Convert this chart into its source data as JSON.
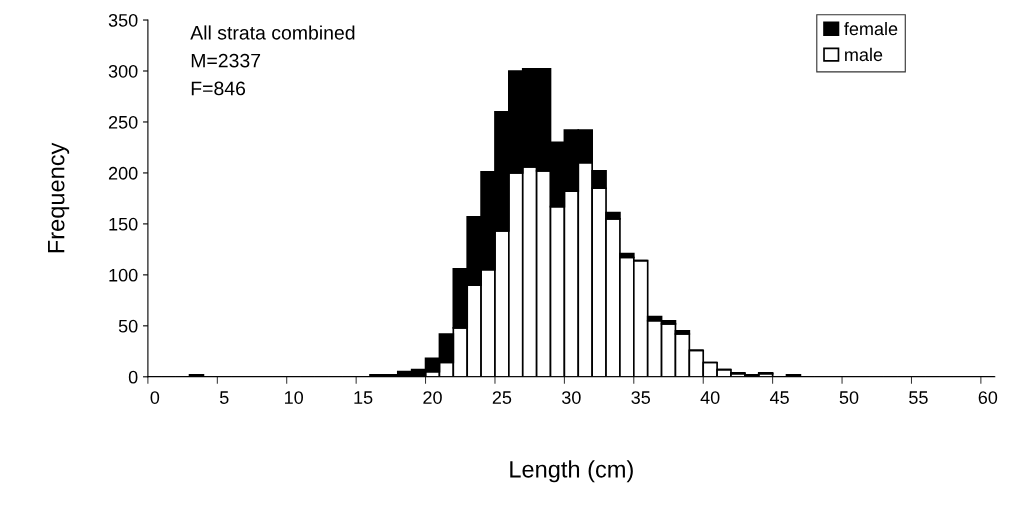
{
  "chart_data": {
    "type": "bar",
    "xlabel": "Length (cm)",
    "ylabel": "Frequency",
    "annotations": [
      "All strata combined",
      "M=2337",
      "F=846"
    ],
    "categories": [
      "0",
      null,
      null,
      null,
      null,
      "5",
      null,
      null,
      null,
      null,
      "10",
      null,
      null,
      null,
      null,
      "15",
      null,
      null,
      null,
      null,
      "20",
      null,
      null,
      null,
      null,
      "25",
      null,
      null,
      null,
      null,
      "30",
      null,
      null,
      null,
      null,
      "35",
      null,
      null,
      null,
      null,
      "40",
      null,
      null,
      null,
      null,
      "45",
      null,
      null,
      null,
      null,
      "50",
      null,
      null,
      null,
      null,
      "55",
      null,
      null,
      null,
      null,
      "60"
    ],
    "stacked": true,
    "series": [
      {
        "name": "male",
        "color": "#ffffff",
        "values": [
          0,
          0,
          0,
          0,
          0,
          0,
          0,
          0,
          0,
          0,
          0,
          0,
          0,
          0,
          0,
          0,
          0,
          0,
          0,
          0,
          5,
          14,
          48,
          90,
          105,
          143,
          200,
          206,
          202,
          167,
          182,
          210,
          185,
          155,
          117,
          114,
          55,
          52,
          42,
          26,
          14,
          7,
          3,
          0,
          3,
          0,
          0,
          0,
          0,
          0,
          0,
          0,
          0,
          0,
          0,
          0,
          0,
          0,
          0,
          0,
          0
        ]
      },
      {
        "name": "female",
        "color": "#000000",
        "values": [
          0,
          0,
          0,
          2,
          0,
          0,
          0,
          0,
          0,
          0,
          0,
          0,
          0,
          0,
          0,
          0,
          2,
          2,
          5,
          7,
          13,
          28,
          58,
          67,
          96,
          117,
          100,
          96,
          100,
          63,
          60,
          32,
          17,
          6,
          4,
          0,
          4,
          3,
          3,
          0,
          0,
          0,
          1,
          2,
          1,
          0,
          2,
          0,
          0,
          0,
          0,
          0,
          0,
          0,
          0,
          0,
          0,
          0,
          0,
          0,
          0
        ]
      }
    ],
    "ylim": [
      0,
      350
    ],
    "yticks": [
      0,
      50,
      100,
      150,
      200,
      250,
      300,
      350
    ],
    "grid": false,
    "legend": "top right"
  }
}
